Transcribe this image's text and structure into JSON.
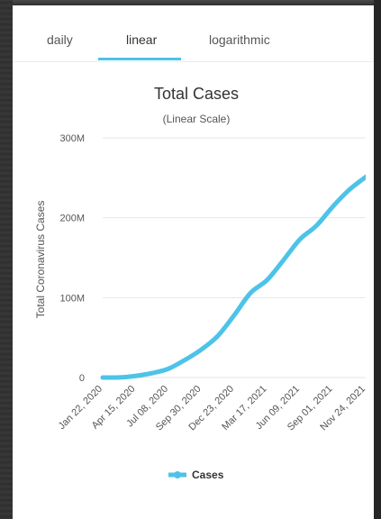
{
  "tabs": [
    {
      "label": "daily",
      "active": false
    },
    {
      "label": "linear",
      "active": true
    },
    {
      "label": "logarithmic",
      "active": false
    }
  ],
  "accent_color": "#4dc3e8",
  "chart_data": {
    "type": "line",
    "title": "Total Cases",
    "subtitle": "(Linear Scale)",
    "xlabel": "",
    "ylabel": "Total Coronavirus Cases",
    "ylim": [
      0,
      300000000
    ],
    "yticks": [
      0,
      100000000,
      200000000,
      300000000
    ],
    "ytick_labels": [
      "0",
      "100M",
      "200M",
      "300M"
    ],
    "xtick_labels": [
      "Jan 22, 2020",
      "Apr 15, 2020",
      "Jul 08, 2020",
      "Sep 30, 2020",
      "Dec 23, 2020",
      "Mar 17, 2021",
      "Jun 09, 2021",
      "Sep 01, 2021",
      "Nov 24, 2021"
    ],
    "grid": true,
    "legend": {
      "position": "bottom",
      "entries": [
        "Cases"
      ]
    },
    "series": [
      {
        "name": "Cases",
        "color": "#4dc3e8",
        "x": [
          "Jan 22, 2020",
          "Mar 04, 2020",
          "Apr 15, 2020",
          "May 27, 2020",
          "Jul 08, 2020",
          "Aug 19, 2020",
          "Sep 30, 2020",
          "Nov 11, 2020",
          "Dec 23, 2020",
          "Feb 03, 2021",
          "Mar 17, 2021",
          "Apr 28, 2021",
          "Jun 09, 2021",
          "Jul 21, 2021",
          "Sep 01, 2021",
          "Oct 13, 2021",
          "Nov 24, 2021",
          "Dec 15, 2021"
        ],
        "values": [
          0,
          0.1,
          2,
          5.5,
          11,
          22,
          35,
          52,
          78,
          106,
          122,
          147,
          173,
          190,
          214,
          235,
          251,
          265
        ]
      }
    ]
  }
}
